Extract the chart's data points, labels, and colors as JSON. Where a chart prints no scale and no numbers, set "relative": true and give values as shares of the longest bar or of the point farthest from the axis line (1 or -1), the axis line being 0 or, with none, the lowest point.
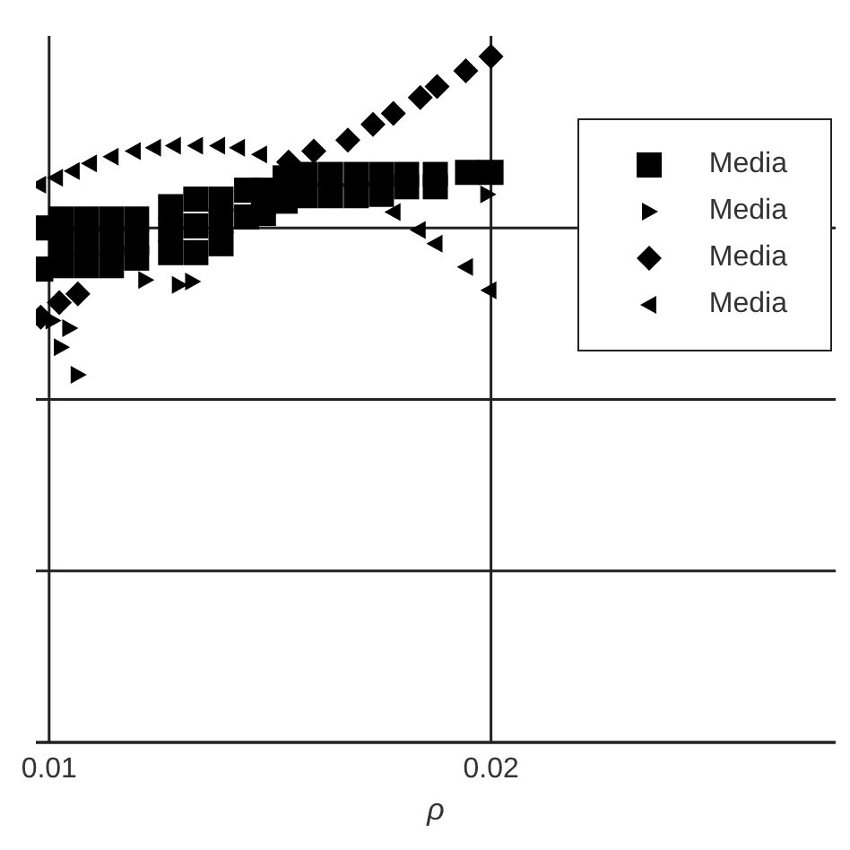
{
  "chart_data": {
    "type": "scatter",
    "xlabel": "ρ",
    "relative": true,
    "xlim": [
      0.0097,
      0.0278
    ],
    "xticks": [
      0.01,
      0.02
    ],
    "grid": true,
    "legend": "top right",
    "series": [
      {
        "name": "Media",
        "color": "#000000",
        "marker": "square",
        "x": [
          0.00981,
          0.00981,
          0.01027,
          0.01027,
          0.01027,
          0.01084,
          0.01084,
          0.01084,
          0.01141,
          0.01141,
          0.01141,
          0.01198,
          0.01198,
          0.01198,
          0.01275,
          0.01275,
          0.01275,
          0.01332,
          0.01332,
          0.01332,
          0.01389,
          0.01389,
          0.01389,
          0.01447,
          0.01447,
          0.01485,
          0.01485,
          0.01534,
          0.01534,
          0.0158,
          0.0158,
          0.01637,
          0.01637,
          0.01695,
          0.01695,
          0.01752,
          0.01752,
          0.01809,
          0.01809,
          0.01874,
          0.01874,
          0.01947,
          0.02
        ],
        "values": [
          0.75,
          0.69,
          0.763,
          0.729,
          0.695,
          0.763,
          0.729,
          0.695,
          0.763,
          0.729,
          0.695,
          0.763,
          0.729,
          0.706,
          0.781,
          0.747,
          0.714,
          0.792,
          0.753,
          0.714,
          0.792,
          0.76,
          0.727,
          0.805,
          0.766,
          0.805,
          0.771,
          0.823,
          0.789,
          0.828,
          0.797,
          0.828,
          0.797,
          0.828,
          0.797,
          0.828,
          0.799,
          0.828,
          0.81,
          0.828,
          0.81,
          0.831,
          0.831
        ]
      },
      {
        "name": "Media",
        "color": "#000000",
        "marker": "triangle-right",
        "x": [
          0.01008,
          0.01046,
          0.01027,
          0.01065,
          0.01218,
          0.01294,
          0.01324,
          0.01992
        ],
        "values": [
          0.615,
          0.604,
          0.576,
          0.536,
          0.674,
          0.667,
          0.672,
          0.799
        ]
      },
      {
        "name": "Media",
        "color": "#000000",
        "marker": "diamond",
        "x": [
          0.00981,
          0.01023,
          0.01065,
          0.01542,
          0.01599,
          0.01676,
          0.01733,
          0.01779,
          0.0184,
          0.01878,
          0.01943,
          0.02
        ],
        "values": [
          0.62,
          0.641,
          0.654,
          0.846,
          0.862,
          0.878,
          0.901,
          0.917,
          0.94,
          0.956,
          0.979,
          1.0
        ]
      },
      {
        "name": "Media",
        "color": "#000000",
        "marker": "triangle-left",
        "x": [
          0.00977,
          0.01015,
          0.01053,
          0.01092,
          0.01141,
          0.01191,
          0.01237,
          0.01282,
          0.01332,
          0.01382,
          0.01427,
          0.01477,
          0.01779,
          0.01836,
          0.01874,
          0.01943,
          0.01996
        ],
        "values": [
          0.813,
          0.823,
          0.833,
          0.844,
          0.854,
          0.862,
          0.867,
          0.87,
          0.87,
          0.87,
          0.867,
          0.857,
          0.773,
          0.747,
          0.727,
          0.693,
          0.659
        ]
      }
    ]
  }
}
